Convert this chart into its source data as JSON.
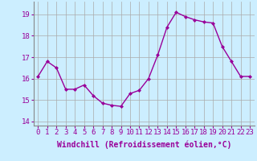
{
  "x": [
    0,
    1,
    2,
    3,
    4,
    5,
    6,
    7,
    8,
    9,
    10,
    11,
    12,
    13,
    14,
    15,
    16,
    17,
    18,
    19,
    20,
    21,
    22,
    23
  ],
  "y": [
    16.1,
    16.8,
    16.5,
    15.5,
    15.5,
    15.7,
    15.2,
    14.85,
    14.75,
    14.7,
    15.3,
    15.45,
    16.0,
    17.1,
    18.4,
    19.1,
    18.9,
    18.75,
    18.65,
    18.6,
    17.5,
    16.8,
    16.1,
    16.1
  ],
  "line_color": "#990099",
  "marker": "D",
  "marker_size": 2,
  "line_width": 1.0,
  "bg_color": "#cceeff",
  "grid_color": "#aaaaaa",
  "ylabel_ticks": [
    14,
    15,
    16,
    17,
    18,
    19
  ],
  "xlabel": "Windchill (Refroidissement éolien,°C)",
  "xlabel_fontsize": 7,
  "tick_fontsize": 6.5,
  "ylim": [
    13.8,
    19.6
  ],
  "xlim": [
    -0.5,
    23.5
  ]
}
